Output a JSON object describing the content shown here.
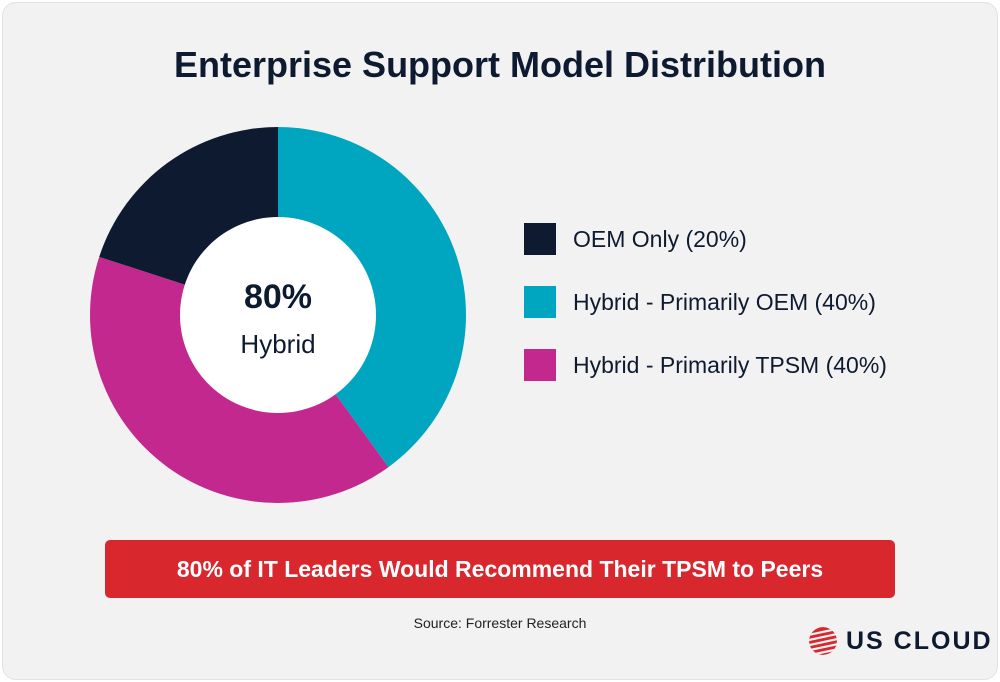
{
  "chart_data": {
    "type": "pie",
    "title": "Enterprise Support Model Distribution",
    "donut": true,
    "center_value": "80%",
    "center_label": "Hybrid",
    "legend_position": "right",
    "series": [
      {
        "name": "Hybrid - Primarily OEM",
        "value": 40,
        "color": "#00a6c0",
        "legend": "Hybrid - Primarily OEM (40%)"
      },
      {
        "name": "Hybrid - Primarily TPSM",
        "value": 40,
        "color": "#c3288e",
        "legend": "Hybrid - Primarily TPSM (40%)"
      },
      {
        "name": "OEM Only",
        "value": 20,
        "color": "#0e1a30",
        "legend": "OEM Only (20%)"
      }
    ],
    "legend_order": [
      2,
      0,
      1
    ]
  },
  "banner": {
    "text": "80% of IT Leaders Would Recommend Their TPSM to Peers",
    "color": "#d9272e"
  },
  "source": "Source: Forrester Research",
  "logo": {
    "text": "US CLOUD",
    "icon": "globe-stripes-icon"
  }
}
